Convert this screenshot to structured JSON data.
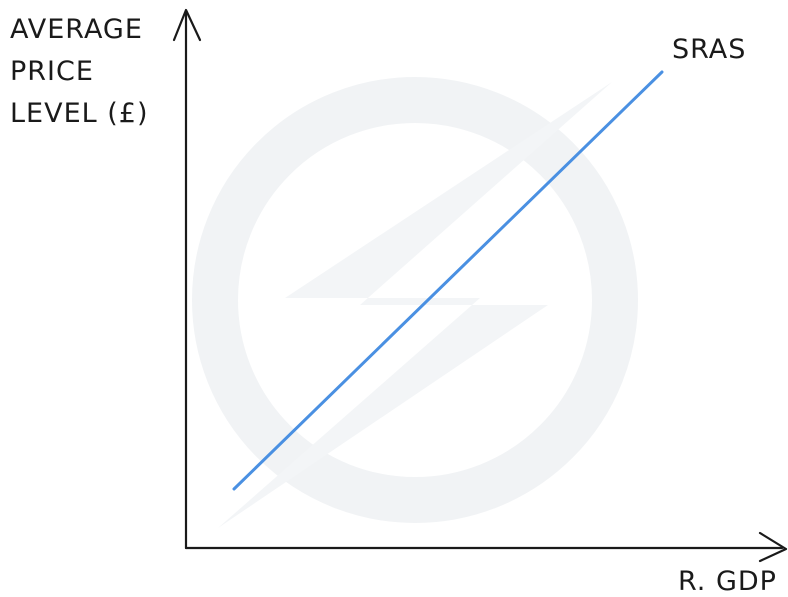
{
  "diagram": {
    "y_axis_label_lines": [
      "AVERAGE",
      "PRICE",
      "LEVEL (£)"
    ],
    "x_axis_label": "R. GDP",
    "curve_label": "SRAS",
    "curve_color": "#4a90e2",
    "axis_color": "#1a1a1a",
    "watermark": "lightning-bolt-logo"
  }
}
